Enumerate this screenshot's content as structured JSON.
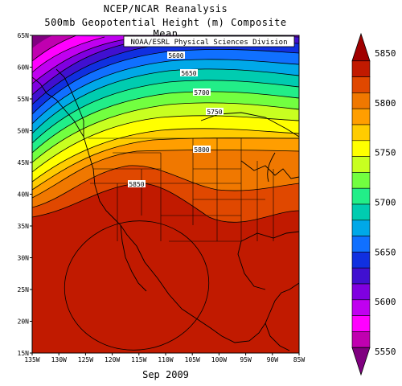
{
  "header": {
    "title_line1": "NCEP/NCAR Reanalysis",
    "title_line2": "500mb Geopotential Height (m) Composite Mean",
    "credit": "NOAA/ESRL Physical Sciences Division"
  },
  "footer": {
    "date": "Sep 2009"
  },
  "map": {
    "lon_range": [
      -135,
      -85
    ],
    "lat_range": [
      15,
      65
    ],
    "lat_ticks": [
      "65N",
      "60N",
      "55N",
      "50N",
      "45N",
      "40N",
      "35N",
      "30N",
      "25N",
      "20N",
      "15N"
    ],
    "lon_ticks": [
      "135W",
      "130W",
      "125W",
      "120W",
      "115W",
      "110W",
      "105W",
      "100W",
      "95W",
      "90W",
      "85W"
    ],
    "contour_labels": [
      "5600",
      "5650",
      "5700",
      "5750",
      "5800",
      "5850"
    ]
  },
  "colorbar": {
    "labels": [
      "5850",
      "5800",
      "5750",
      "5700",
      "5650",
      "5600",
      "5550"
    ],
    "colors": [
      "#a00000",
      "#c11a00",
      "#e04800",
      "#f07800",
      "#ff9e00",
      "#ffcc00",
      "#ffff00",
      "#c8ff20",
      "#72ff40",
      "#22ee88",
      "#00ccb0",
      "#00a8e8",
      "#1070ff",
      "#1030e0",
      "#4010d0",
      "#8000e0",
      "#c000f0",
      "#ff00ff",
      "#c000b0",
      "#800080"
    ]
  }
}
